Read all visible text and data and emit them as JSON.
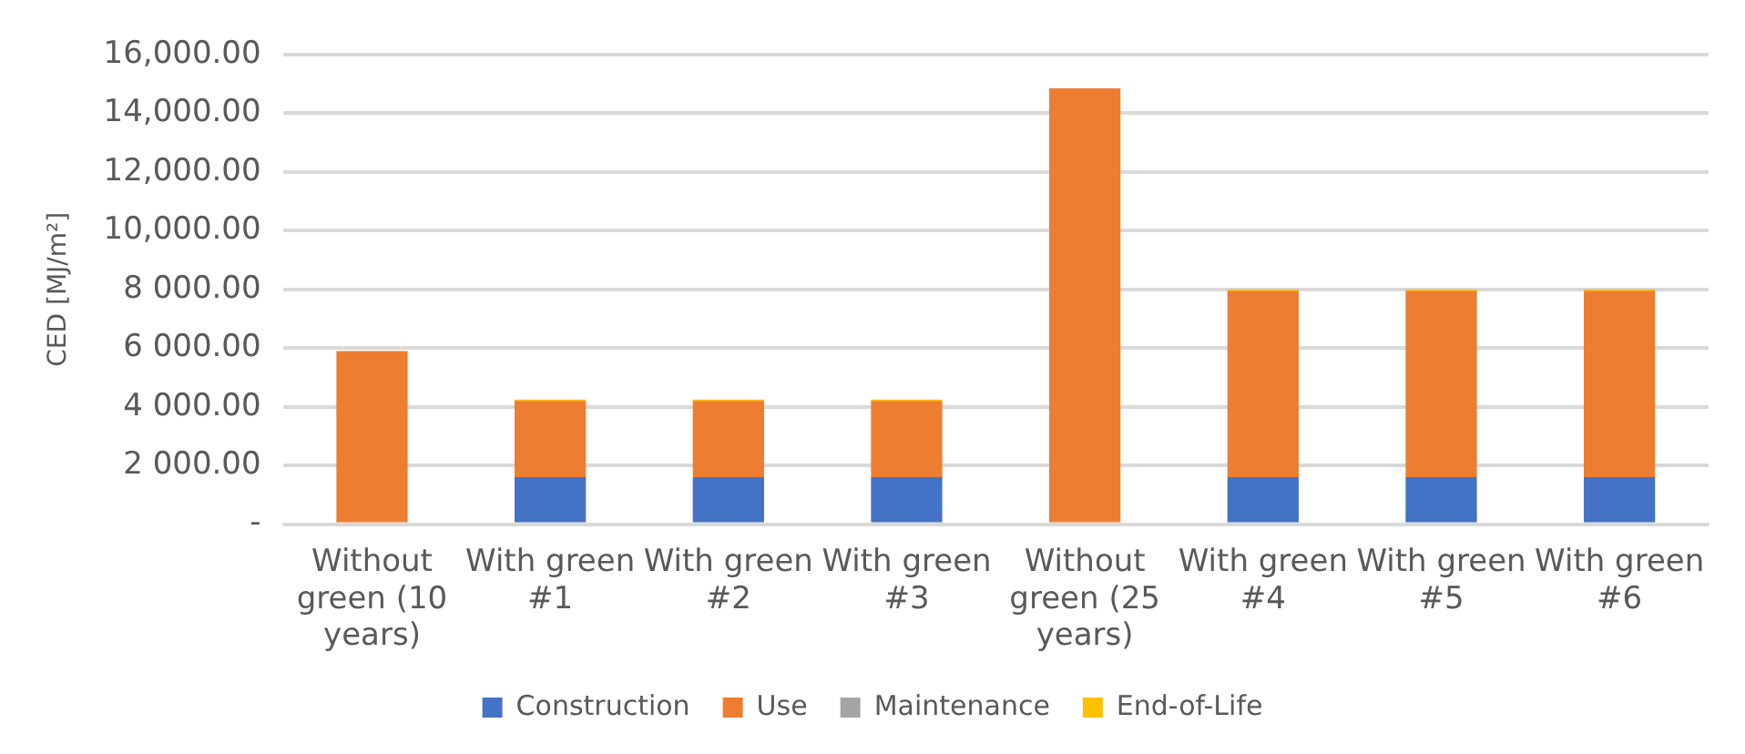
{
  "chart_data": {
    "type": "bar",
    "stacked": true,
    "ylabel": "CED [MJ/m²]",
    "categories": [
      "Without green (10 years)",
      "With green #1",
      "With green #2",
      "With green #3",
      "Without green (25 years)",
      "With green #4",
      "With green #5",
      "With green #6"
    ],
    "series": [
      {
        "name": "Construction",
        "color": "#4472c4",
        "values": [
          0,
          1600,
          1600,
          1600,
          0,
          1600,
          1600,
          1600
        ]
      },
      {
        "name": "Use",
        "color": "#ed7d31",
        "values": [
          5900,
          2600,
          2600,
          2600,
          14850,
          6350,
          6350,
          6350
        ]
      },
      {
        "name": "Maintenance",
        "color": "#a5a5a5",
        "values": [
          0,
          0,
          0,
          0,
          0,
          0,
          0,
          0
        ]
      },
      {
        "name": "End-of-Life",
        "color": "#ffc000",
        "values": [
          0,
          50,
          50,
          50,
          0,
          50,
          50,
          50
        ]
      }
    ],
    "ylim": [
      0,
      16000
    ],
    "yticks": [
      {
        "value": 0,
        "label": "-"
      },
      {
        "value": 2000,
        "label": "2 000.00"
      },
      {
        "value": 4000,
        "label": "4 000.00"
      },
      {
        "value": 6000,
        "label": "6 000.00"
      },
      {
        "value": 8000,
        "label": "8 000.00"
      },
      {
        "value": 10000,
        "label": "10,000.00"
      },
      {
        "value": 12000,
        "label": "12,000.00"
      },
      {
        "value": 14000,
        "label": "14,000.00"
      },
      {
        "value": 16000,
        "label": "16,000.00"
      }
    ],
    "grid": "y",
    "legend": "bottom"
  }
}
